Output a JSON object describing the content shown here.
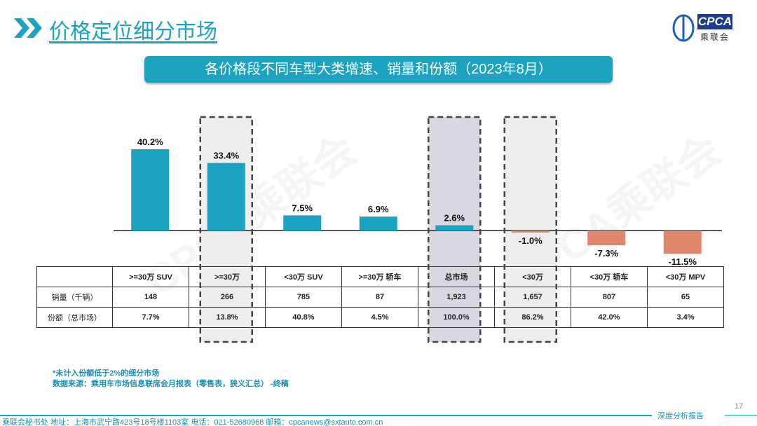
{
  "header": {
    "title": "价格定位细分市场",
    "logo_text": "CPCA",
    "logo_cn": "乘联会"
  },
  "banner": "各价格段不同车型大类增速、销量和份额（2023年8月）",
  "chart_data": {
    "type": "bar",
    "title": "各价格段不同车型大类增速、销量和份额（2023年8月）",
    "categories": [
      ">=30万 SUV",
      ">=30万",
      "<30万 SUV",
      ">=30万 轿车",
      "总市场",
      "<30万",
      "<30万 轿车",
      "<30万 MPV"
    ],
    "values": [
      40.2,
      33.4,
      7.5,
      6.9,
      2.6,
      -1.0,
      -7.3,
      -11.5
    ],
    "data_labels": [
      "40.2%",
      "33.4%",
      "7.5%",
      "6.9%",
      "2.6%",
      "-1.0%",
      "-7.3%",
      "-11.5%"
    ],
    "highlighted": [
      ">=30万",
      "总市场",
      "<30万"
    ],
    "colors": {
      "positive": "#1aa3c2",
      "negative": "#e0876b"
    },
    "grid": false
  },
  "table": {
    "rows": [
      {
        "label": "销量（千辆）",
        "values": [
          "148",
          "266",
          "785",
          "87",
          "1,923",
          "1,657",
          "807",
          "65"
        ]
      },
      {
        "label": "份额（总市场）",
        "values": [
          "7.7%",
          "13.8%",
          "40.8%",
          "4.5%",
          "100.0%",
          "86.2%",
          "42.0%",
          "3.4%"
        ]
      }
    ]
  },
  "notes": [
    "*未计入份额低于2%的细分市场",
    "数据来源：乘用车市场信息联席会月报表（零售表，狭义汇总） -终稿"
  ],
  "footer": {
    "address": "乘联会秘书处   地址：上海市武宁路423号18号楼1103室  电话：021-52680968   邮箱：cpcanews@sxtauto.com.cn",
    "report": "深度分析报告",
    "page": "17"
  },
  "watermark": "CPCA乘联会"
}
